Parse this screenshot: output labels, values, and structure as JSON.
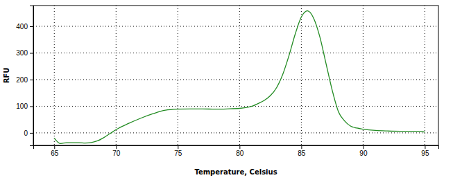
{
  "chart_data": {
    "type": "line",
    "x_label": "Temperature, Celsius",
    "y_label": "RFU",
    "x": [
      65,
      65.5,
      66,
      67,
      67.5,
      68,
      68.5,
      69,
      69.5,
      70,
      71,
      72,
      73,
      74,
      75,
      76,
      77,
      78,
      79,
      80,
      81,
      81.5,
      82,
      82.5,
      83,
      83.5,
      84,
      84.5,
      85,
      85.5,
      86,
      86.5,
      87,
      87.5,
      88,
      88.5,
      89,
      89.5,
      90,
      91,
      92,
      93,
      94,
      94.5,
      95
    ],
    "values": [
      -20,
      -40,
      -37,
      -37,
      -38,
      -36,
      -30,
      -18,
      -3,
      12,
      35,
      55,
      72,
      85,
      89,
      90,
      90,
      89,
      90,
      92,
      100,
      110,
      122,
      140,
      170,
      220,
      290,
      370,
      435,
      458,
      430,
      360,
      260,
      160,
      80,
      45,
      25,
      18,
      14,
      9,
      7,
      6,
      6,
      6,
      3
    ],
    "color": "#228b22",
    "xlim": [
      63.3,
      96.1
    ],
    "ylim": [
      -47,
      478
    ],
    "xticks": [
      65,
      70,
      75,
      80,
      85,
      90,
      95
    ],
    "yticks": [
      0,
      100,
      200,
      300,
      400
    ],
    "grid": true
  }
}
